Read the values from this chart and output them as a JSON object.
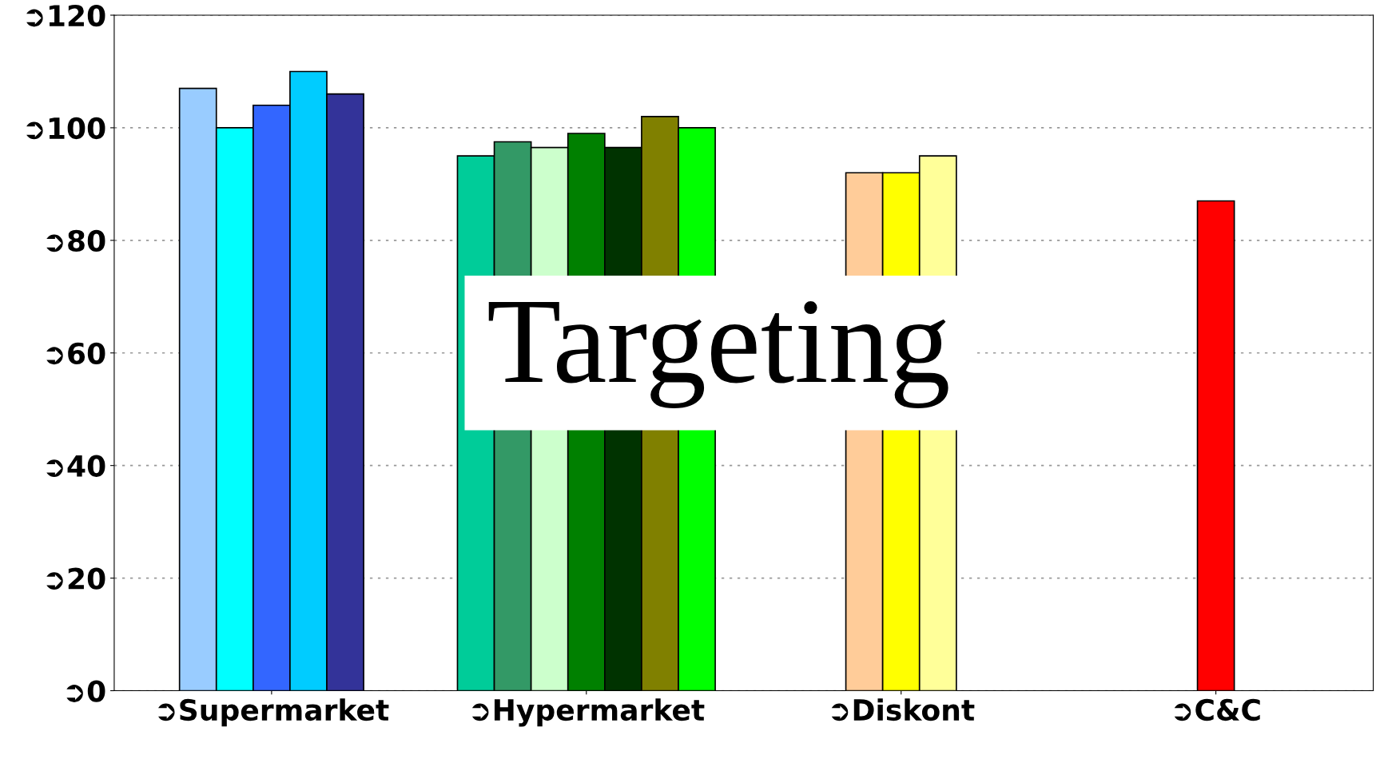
{
  "chart_data": {
    "type": "bar",
    "categories": [
      "➲Supermarket",
      "➲Hypermarket",
      "➲Diskont",
      "➲C&C"
    ],
    "series": [
      {
        "color": "#99ccff",
        "values": [
          107,
          null,
          null,
          null
        ]
      },
      {
        "color": "#00ffff",
        "values": [
          100,
          null,
          null,
          null
        ]
      },
      {
        "color": "#3366ff",
        "values": [
          104,
          null,
          null,
          null
        ]
      },
      {
        "color": "#00ccff",
        "values": [
          110,
          null,
          null,
          null
        ]
      },
      {
        "color": "#333399",
        "values": [
          106,
          null,
          null,
          null
        ]
      },
      {
        "color": "#00cc99",
        "values": [
          null,
          95,
          null,
          null
        ]
      },
      {
        "color": "#339966",
        "values": [
          null,
          97.5,
          null,
          null
        ]
      },
      {
        "color": "#ccffcc",
        "values": [
          null,
          96.5,
          null,
          null
        ]
      },
      {
        "color": "#008000",
        "values": [
          null,
          99,
          null,
          null
        ]
      },
      {
        "color": "#003300",
        "values": [
          null,
          96.5,
          null,
          null
        ]
      },
      {
        "color": "#808000",
        "values": [
          null,
          102,
          null,
          null
        ]
      },
      {
        "color": "#00ff00",
        "values": [
          null,
          100,
          null,
          null
        ]
      },
      {
        "color": "#ffcc99",
        "values": [
          null,
          null,
          92,
          null
        ]
      },
      {
        "color": "#ffff00",
        "values": [
          null,
          null,
          92,
          null
        ]
      },
      {
        "color": "#ffff99",
        "values": [
          null,
          null,
          95,
          null
        ]
      },
      {
        "color": "#ff0000",
        "values": [
          null,
          null,
          null,
          87
        ]
      }
    ],
    "ylim": [
      0,
      120
    ],
    "yticks": [
      {
        "value": 0,
        "label": "➲0"
      },
      {
        "value": 20,
        "label": "➲20"
      },
      {
        "value": 40,
        "label": "➲40"
      },
      {
        "value": 60,
        "label": "➲60"
      },
      {
        "value": 80,
        "label": "➲80"
      },
      {
        "value": 100,
        "label": "➲100"
      },
      {
        "value": 120,
        "label": "➲120"
      }
    ],
    "grid": "y",
    "annotations": [
      "Targeting"
    ]
  }
}
